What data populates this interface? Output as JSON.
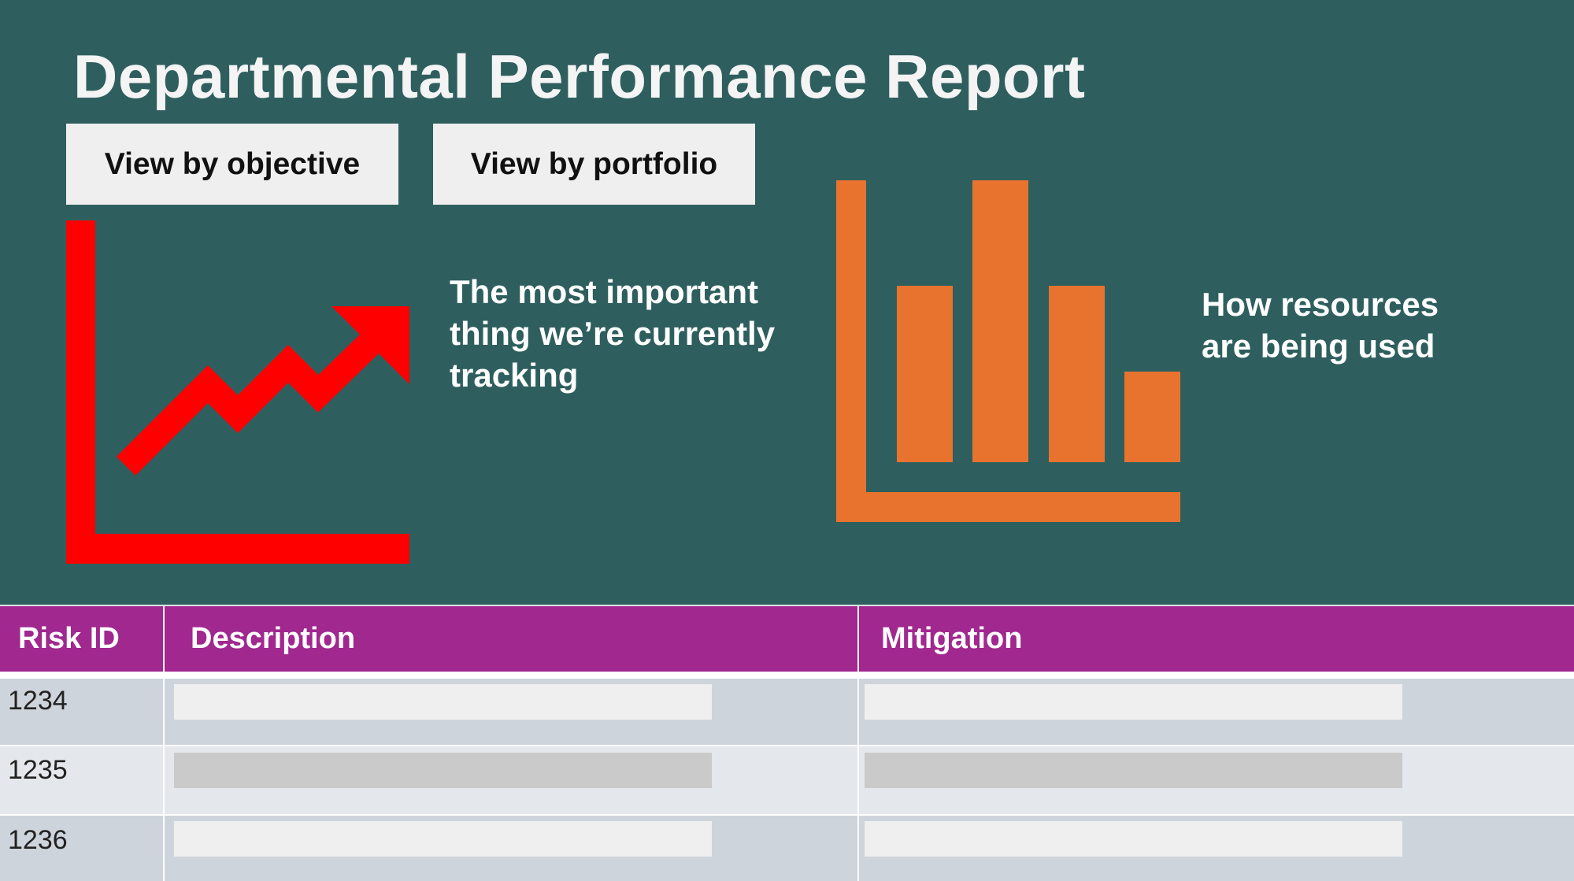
{
  "header": {
    "title": "Departmental Performance Report"
  },
  "buttons": [
    "View by objective",
    "View by portfolio"
  ],
  "panels": [
    {
      "lines": [
        "The most important",
        "thing we’re currently",
        "tracking"
      ]
    },
    {
      "lines": [
        "How resources",
        "are being used"
      ]
    }
  ],
  "table": {
    "columns": [
      "Risk ID",
      "Description",
      "Mitigation"
    ],
    "rows": [
      [
        "1234"
      ],
      [
        "1235"
      ],
      [
        "1236"
      ]
    ]
  }
}
